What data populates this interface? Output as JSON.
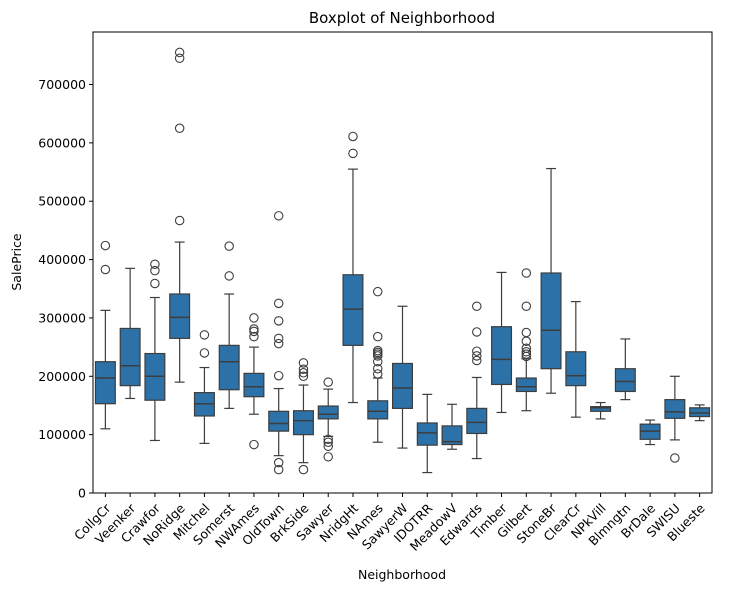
{
  "chart_data": {
    "type": "boxplot",
    "title": "Boxplot of Neighborhood",
    "xlabel": "Neighborhood",
    "ylabel": "SalePrice",
    "ylim": [
      0,
      790000
    ],
    "yticks": [
      0,
      100000,
      200000,
      300000,
      400000,
      500000,
      600000,
      700000
    ],
    "grid": false,
    "box_color": "#2c72a8",
    "line_color": "#3d3d3d",
    "categories": [
      "CollgCr",
      "Veenker",
      "Crawfor",
      "NoRidge",
      "Mitchel",
      "Somerst",
      "NWAmes",
      "OldTown",
      "BrkSide",
      "Sawyer",
      "NridgHt",
      "NAmes",
      "SawyerW",
      "IDOTRR",
      "MeadowV",
      "Edwards",
      "Timber",
      "Gilbert",
      "StoneBr",
      "ClearCr",
      "NPkVill",
      "Blmngtn",
      "BrDale",
      "SWISU",
      "Blueste"
    ],
    "boxes": [
      {
        "category": "CollgCr",
        "whislo": 110000,
        "q1": 153000,
        "med": 197000,
        "q3": 225000,
        "whishi": 313000,
        "fliers": [
          383000,
          424000
        ]
      },
      {
        "category": "Veenker",
        "whislo": 162000,
        "q1": 184000,
        "med": 218000,
        "q3": 282000,
        "whishi": 385000,
        "fliers": []
      },
      {
        "category": "Crawfor",
        "whislo": 90000,
        "q1": 159000,
        "med": 200000,
        "q3": 239000,
        "whishi": 335000,
        "fliers": [
          359000,
          381000,
          392000
        ]
      },
      {
        "category": "NoRidge",
        "whislo": 190000,
        "q1": 265000,
        "med": 301000,
        "q3": 341000,
        "whishi": 430000,
        "fliers": [
          467000,
          625000,
          745000,
          755000
        ]
      },
      {
        "category": "Mitchel",
        "whislo": 85000,
        "q1": 132000,
        "med": 153000,
        "q3": 172000,
        "whishi": 215000,
        "fliers": [
          240000,
          271000
        ]
      },
      {
        "category": "Somerst",
        "whislo": 145000,
        "q1": 177000,
        "med": 225000,
        "q3": 253000,
        "whishi": 341000,
        "fliers": [
          372000,
          423000
        ]
      },
      {
        "category": "NWAmes",
        "whislo": 135000,
        "q1": 165000,
        "med": 182000,
        "q3": 205000,
        "whishi": 250000,
        "fliers": [
          83000,
          268000,
          277000,
          281000,
          300000
        ]
      },
      {
        "category": "OldTown",
        "whislo": 64000,
        "q1": 106000,
        "med": 119000,
        "q3": 140000,
        "whishi": 179000,
        "fliers": [
          40000,
          52000,
          201000,
          256000,
          265000,
          295000,
          325000,
          475000
        ]
      },
      {
        "category": "BrkSide",
        "whislo": 52000,
        "q1": 100000,
        "med": 124000,
        "q3": 141000,
        "whishi": 185000,
        "fliers": [
          40000,
          200000,
          206000,
          212000,
          223000
        ]
      },
      {
        "category": "Sawyer",
        "whislo": 97000,
        "q1": 127000,
        "med": 135000,
        "q3": 149000,
        "whishi": 178000,
        "fliers": [
          62000,
          80000,
          87000,
          92000,
          190000
        ]
      },
      {
        "category": "NridgHt",
        "whislo": 155000,
        "q1": 253000,
        "med": 315000,
        "q3": 374000,
        "whishi": 555000,
        "fliers": [
          582000,
          611000
        ]
      },
      {
        "category": "NAmes",
        "whislo": 87000,
        "q1": 127000,
        "med": 140000,
        "q3": 158000,
        "whishi": 197000,
        "fliers": [
          204000,
          213000,
          225000,
          235000,
          238000,
          241000,
          244000,
          268000,
          345000
        ]
      },
      {
        "category": "SawyerW",
        "whislo": 77000,
        "q1": 145000,
        "med": 180000,
        "q3": 222000,
        "whishi": 320000,
        "fliers": []
      },
      {
        "category": "IDOTRR",
        "whislo": 35000,
        "q1": 82000,
        "med": 103000,
        "q3": 120000,
        "whishi": 169000,
        "fliers": []
      },
      {
        "category": "MeadowV",
        "whislo": 75000,
        "q1": 83000,
        "med": 88000,
        "q3": 115000,
        "whishi": 152000,
        "fliers": []
      },
      {
        "category": "Edwards",
        "whislo": 59000,
        "q1": 102000,
        "med": 121000,
        "q3": 145000,
        "whishi": 198000,
        "fliers": [
          227000,
          235000,
          243000,
          276000,
          320000
        ]
      },
      {
        "category": "Timber",
        "whislo": 138000,
        "q1": 186000,
        "med": 229000,
        "q3": 285000,
        "whishi": 378000,
        "fliers": []
      },
      {
        "category": "Gilbert",
        "whislo": 141000,
        "q1": 174000,
        "med": 182000,
        "q3": 197000,
        "whishi": 230000,
        "fliers": [
          234000,
          238000,
          242000,
          248000,
          260000,
          275000,
          320000,
          377000
        ]
      },
      {
        "category": "StoneBr",
        "whislo": 171000,
        "q1": 213000,
        "med": 279000,
        "q3": 377000,
        "whishi": 556000,
        "fliers": []
      },
      {
        "category": "ClearCr",
        "whislo": 130000,
        "q1": 184000,
        "med": 201000,
        "q3": 242000,
        "whishi": 328000,
        "fliers": []
      },
      {
        "category": "NPkVill",
        "whislo": 127000,
        "q1": 140000,
        "med": 146000,
        "q3": 148000,
        "whishi": 155000,
        "fliers": []
      },
      {
        "category": "Blmngtn",
        "whislo": 160000,
        "q1": 174000,
        "med": 191000,
        "q3": 213000,
        "whishi": 264000,
        "fliers": []
      },
      {
        "category": "BrDale",
        "whislo": 83000,
        "q1": 92000,
        "med": 106000,
        "q3": 118000,
        "whishi": 125000,
        "fliers": []
      },
      {
        "category": "SWISU",
        "whislo": 91000,
        "q1": 128000,
        "med": 139000,
        "q3": 160000,
        "whishi": 200000,
        "fliers": [
          60000
        ]
      },
      {
        "category": "Blueste",
        "whislo": 124000,
        "q1": 131000,
        "med": 137000,
        "q3": 146000,
        "whishi": 151000,
        "fliers": []
      }
    ]
  }
}
